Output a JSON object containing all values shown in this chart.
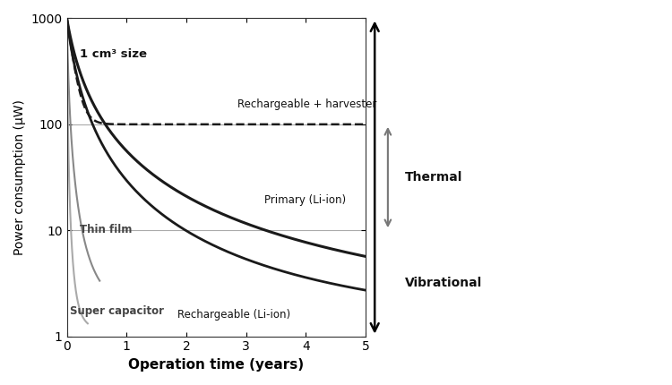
{
  "title": "",
  "xlabel": "Operation time (years)",
  "ylabel": "Power consumption (μW)",
  "xlim": [
    0,
    5
  ],
  "ylim": [
    1,
    1000
  ],
  "bg_color": "#ffffff",
  "text_color": "#000000",
  "annotation_1cm3": "1 cm³ size",
  "annotation_harvester": "Rechargeable + harvester",
  "annotation_primary": "Primary (Li-ion)",
  "annotation_rechargeable": "Rechargeable (Li-ion)",
  "annotation_thinfilm": "Thin film",
  "annotation_supercap": "Super capacitor",
  "annotation_thermal": "Thermal",
  "annotation_vibrational": "Vibrational",
  "hline_100": 100,
  "hline_10": 10,
  "curve_dark": "#1a1a1a",
  "curve_gray": "#888888",
  "curve_lightgray": "#aaaaaa"
}
